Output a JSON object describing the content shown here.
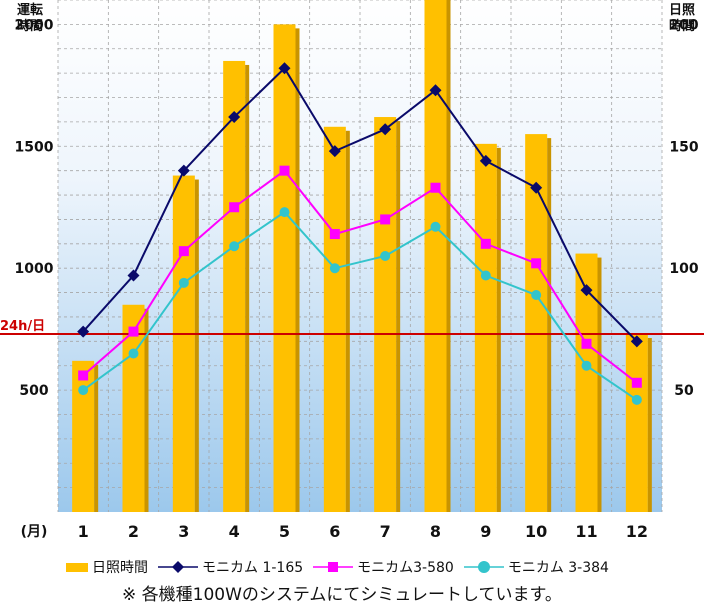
{
  "chart_data": {
    "type": "bar+line",
    "left_axis_label": "運転\n時間",
    "right_axis_label": "日照\n時間",
    "x_unit_label": "(月)",
    "categories": [
      "1",
      "2",
      "3",
      "4",
      "5",
      "6",
      "7",
      "8",
      "9",
      "10",
      "11",
      "12"
    ],
    "ylim_left": [
      0,
      2100
    ],
    "ylim_right": [
      0,
      210
    ],
    "yticks_left": [
      500,
      1000,
      1500,
      2000
    ],
    "yticks_right": [
      50,
      100,
      150,
      200
    ],
    "reference_line": {
      "label": "24h/日",
      "value_left": 730,
      "color": "#cc0000"
    },
    "bars": {
      "name": "日照時間",
      "color": "#ffc000",
      "axis": "right",
      "values": [
        62,
        85,
        138,
        185,
        200,
        158,
        162,
        212,
        151,
        155,
        106,
        73
      ]
    },
    "series": [
      {
        "name": "モニカム 1-165",
        "color": "#0a0a6a",
        "marker": "diamond",
        "values": [
          740,
          970,
          1400,
          1620,
          1820,
          1480,
          1570,
          1730,
          1440,
          1330,
          910,
          700
        ]
      },
      {
        "name": "モニカム3-580",
        "color": "#ff00ff",
        "marker": "square",
        "values": [
          560,
          740,
          1070,
          1250,
          1400,
          1140,
          1200,
          1330,
          1100,
          1020,
          690,
          530
        ]
      },
      {
        "name": "モニカム 3-384",
        "color": "#33c4cc",
        "marker": "circle",
        "values": [
          500,
          650,
          940,
          1090,
          1230,
          1000,
          1050,
          1170,
          970,
          890,
          600,
          460
        ]
      }
    ],
    "grid": true,
    "legend_position": "bottom"
  },
  "note": "※ 各機種100Wのシステムにてシミュレートしています。"
}
